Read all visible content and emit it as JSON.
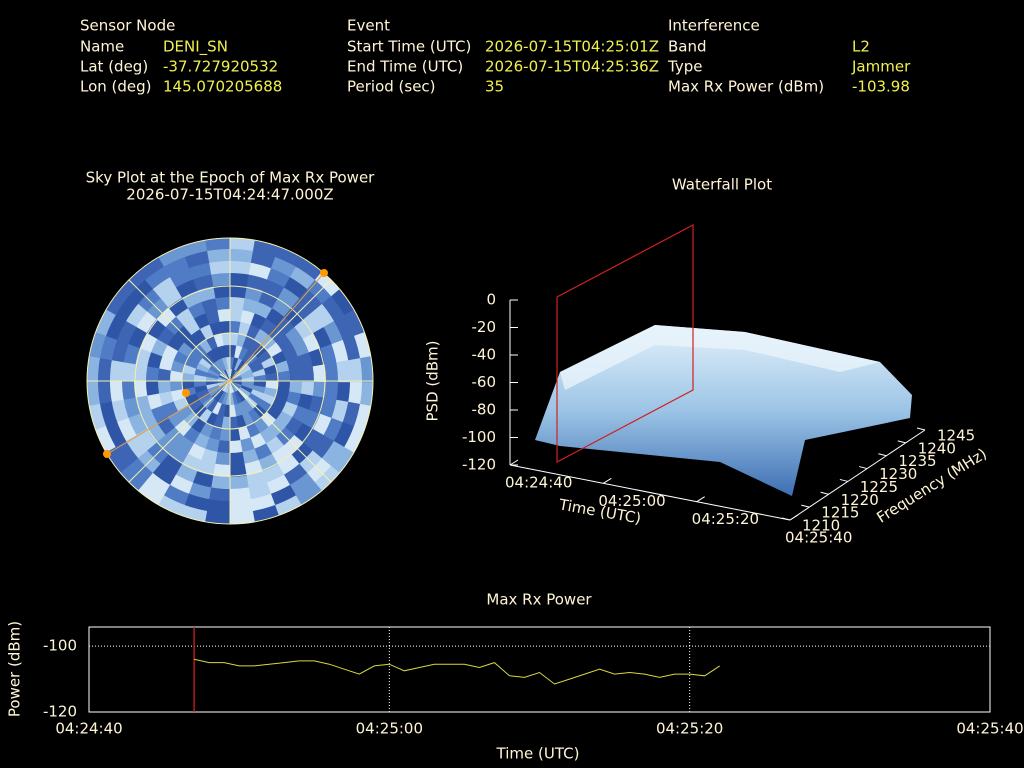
{
  "header": {
    "sensor": {
      "title": "Sensor Node",
      "rows": [
        [
          "Name",
          "DENI_SN"
        ],
        [
          "Lat (deg)",
          "-37.727920532"
        ],
        [
          "Lon (deg)",
          "145.070205688"
        ]
      ]
    },
    "event": {
      "title": "Event",
      "rows": [
        [
          "Start Time (UTC)",
          "2026-07-15T04:25:01Z"
        ],
        [
          "End Time (UTC)",
          "2026-07-15T04:25:36Z"
        ],
        [
          "Period (sec)",
          "35"
        ]
      ]
    },
    "interference": {
      "title": "Interference",
      "rows": [
        [
          "Band",
          "L2"
        ],
        [
          "Type",
          "Jammer"
        ],
        [
          "Max Rx Power (dBm)",
          "-103.98"
        ]
      ]
    }
  },
  "sky_plot": {
    "title": "Sky Plot at the Epoch of Max Rx Power",
    "subtitle": "2026-07-15T04:24:47.000Z"
  },
  "waterfall": {
    "title": "Waterfall Plot",
    "z_label": "PSD (dBm)",
    "x_label": "Time (UTC)",
    "y_label": "Frequency (MHz)",
    "zlim": [
      -120,
      0
    ],
    "zticks": [
      0,
      -20,
      -40,
      -60,
      -80,
      -100,
      -120
    ],
    "xlim": [
      "04:24:40",
      "04:25:40"
    ],
    "xticks": [
      "04:24:40",
      "04:25:00",
      "04:25:20",
      "04:25:40"
    ],
    "ylim": [
      1210,
      1245
    ],
    "yticks": [
      1210,
      1215,
      1220,
      1225,
      1230,
      1235,
      1240,
      1245
    ]
  },
  "chart_data": {
    "type": "line",
    "title": "Max Rx Power",
    "x_label": "Time (UTC)",
    "y_label": "Power (dBm)",
    "x": [
      "04:24:47",
      "04:24:48",
      "04:24:49",
      "04:24:50",
      "04:24:51",
      "04:24:52",
      "04:24:53",
      "04:24:54",
      "04:24:55",
      "04:24:56",
      "04:24:57",
      "04:24:58",
      "04:24:59",
      "04:25:00",
      "04:25:01",
      "04:25:02",
      "04:25:03",
      "04:25:04",
      "04:25:05",
      "04:25:06",
      "04:25:07",
      "04:25:08",
      "04:25:09",
      "04:25:10",
      "04:25:11",
      "04:25:12",
      "04:25:13",
      "04:25:14",
      "04:25:15",
      "04:25:16",
      "04:25:17",
      "04:25:18",
      "04:25:19",
      "04:25:20",
      "04:25:21",
      "04:25:22"
    ],
    "series": [
      {
        "name": "Max Rx Power",
        "color": "#d8d840",
        "values": [
          -104,
          -105,
          -105,
          -106,
          -106,
          -105.5,
          -105,
          -104.5,
          -104.5,
          -105.5,
          -107,
          -108.5,
          -106,
          -105.5,
          -107.5,
          -106.5,
          -105.5,
          -105.5,
          -105.5,
          -106.5,
          -105,
          -109,
          -109.5,
          -108,
          -111.5,
          -110,
          -108.5,
          -107,
          -108.5,
          -108,
          -108.5,
          -109.5,
          -108.5,
          -108.5,
          -109,
          -106
        ]
      }
    ],
    "vline": "04:24:47",
    "xlim": [
      "04:24:40",
      "04:25:40"
    ],
    "xticks": [
      "04:24:40",
      "04:25:00",
      "04:25:20",
      "04:25:40"
    ],
    "ylim": [
      -120,
      -94.2
    ],
    "yticks": [
      -100,
      -120
    ],
    "grid": true
  }
}
